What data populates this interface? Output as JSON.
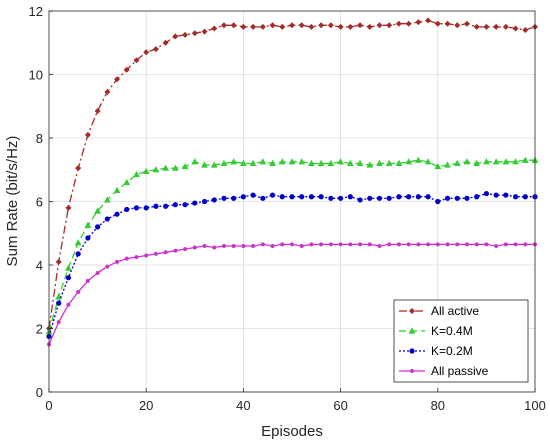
{
  "chart_data": {
    "type": "line",
    "title": "",
    "xlabel": "Episodes",
    "ylabel": "Sum Rate (bit/s/Hz)",
    "xlim": [
      0,
      100
    ],
    "ylim": [
      0,
      12
    ],
    "xticks": [
      0,
      20,
      40,
      60,
      80,
      100
    ],
    "yticks": [
      0,
      2,
      4,
      6,
      8,
      10,
      12
    ],
    "grid": true,
    "legend_position": "bottom-right",
    "x": [
      0,
      2,
      4,
      6,
      8,
      10,
      12,
      14,
      16,
      18,
      20,
      22,
      24,
      26,
      28,
      30,
      32,
      34,
      36,
      38,
      40,
      42,
      44,
      46,
      48,
      50,
      52,
      54,
      56,
      58,
      60,
      62,
      64,
      66,
      68,
      70,
      72,
      74,
      76,
      78,
      80,
      82,
      84,
      86,
      88,
      90,
      92,
      94,
      96,
      98,
      100
    ],
    "series": [
      {
        "name": "All active",
        "color": "#A52A2A",
        "dash": "8,3,2,3",
        "marker": "diamond",
        "values": [
          2.0,
          4.1,
          5.8,
          7.05,
          8.1,
          8.85,
          9.45,
          9.85,
          10.15,
          10.45,
          10.7,
          10.8,
          11.0,
          11.2,
          11.25,
          11.3,
          11.35,
          11.45,
          11.55,
          11.55,
          11.5,
          11.5,
          11.5,
          11.55,
          11.5,
          11.55,
          11.55,
          11.5,
          11.55,
          11.55,
          11.5,
          11.5,
          11.55,
          11.5,
          11.55,
          11.55,
          11.6,
          11.6,
          11.65,
          11.7,
          11.6,
          11.6,
          11.55,
          11.6,
          11.5,
          11.5,
          11.5,
          11.5,
          11.45,
          11.4,
          11.5
        ]
      },
      {
        "name": "K=0.4M",
        "color": "#33CC33",
        "dash": "7,4",
        "marker": "triangle",
        "values": [
          1.9,
          3.0,
          3.9,
          4.7,
          5.25,
          5.7,
          6.05,
          6.35,
          6.6,
          6.85,
          6.95,
          7.0,
          7.05,
          7.05,
          7.1,
          7.25,
          7.15,
          7.15,
          7.2,
          7.25,
          7.2,
          7.2,
          7.25,
          7.2,
          7.25,
          7.25,
          7.25,
          7.2,
          7.2,
          7.2,
          7.25,
          7.2,
          7.2,
          7.15,
          7.2,
          7.2,
          7.2,
          7.25,
          7.3,
          7.25,
          7.1,
          7.15,
          7.2,
          7.25,
          7.2,
          7.25,
          7.25,
          7.25,
          7.25,
          7.3,
          7.3
        ]
      },
      {
        "name": "K=0.2M",
        "color": "#0000CC",
        "dash": "2,2",
        "marker": "circle",
        "values": [
          1.75,
          2.8,
          3.6,
          4.35,
          4.85,
          5.2,
          5.45,
          5.6,
          5.75,
          5.8,
          5.8,
          5.85,
          5.85,
          5.9,
          5.9,
          5.95,
          6.0,
          6.05,
          6.1,
          6.1,
          6.15,
          6.2,
          6.1,
          6.2,
          6.15,
          6.15,
          6.15,
          6.15,
          6.15,
          6.1,
          6.1,
          6.15,
          6.05,
          6.1,
          6.1,
          6.1,
          6.15,
          6.15,
          6.15,
          6.15,
          6.0,
          6.1,
          6.1,
          6.1,
          6.15,
          6.25,
          6.2,
          6.2,
          6.15,
          6.15,
          6.15
        ]
      },
      {
        "name": "All passive",
        "color": "#CC33CC",
        "dash": "",
        "marker": "dot",
        "values": [
          1.5,
          2.2,
          2.75,
          3.15,
          3.5,
          3.75,
          3.95,
          4.1,
          4.2,
          4.25,
          4.3,
          4.35,
          4.4,
          4.45,
          4.5,
          4.55,
          4.6,
          4.55,
          4.6,
          4.6,
          4.6,
          4.6,
          4.65,
          4.6,
          4.65,
          4.65,
          4.6,
          4.65,
          4.65,
          4.65,
          4.65,
          4.65,
          4.65,
          4.65,
          4.6,
          4.65,
          4.65,
          4.65,
          4.65,
          4.65,
          4.65,
          4.65,
          4.65,
          4.65,
          4.65,
          4.65,
          4.6,
          4.65,
          4.65,
          4.65,
          4.65
        ]
      }
    ]
  }
}
